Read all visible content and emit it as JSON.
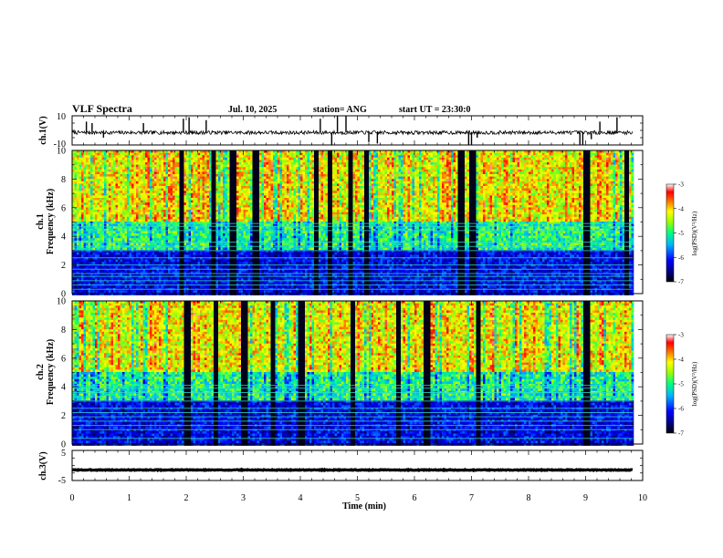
{
  "header": {
    "title": "VLF Spectra",
    "date": "Jul. 10, 2025",
    "station": "station= ANG",
    "start": "start UT = 23:30:0"
  },
  "x_axis": {
    "label": "Time (min)",
    "ticks": [
      "0",
      "1",
      "2",
      "3",
      "4",
      "5",
      "6",
      "7",
      "8",
      "9",
      "10"
    ]
  },
  "chart_data": [
    {
      "type": "line",
      "name": "ch1-waveform",
      "ylabel": "ch.1(V)",
      "y_ticks": [
        "10",
        "-10"
      ],
      "xlim": [
        0,
        10
      ],
      "ylim": [
        -10,
        10
      ],
      "x_data_max": 9.83,
      "baseline": -1.5,
      "noise_amplitude": 2.5,
      "spikes": [
        {
          "x": 0.25,
          "y": 6
        },
        {
          "x": 0.35,
          "y": 5
        },
        {
          "x": 0.55,
          "y": -5
        },
        {
          "x": 1.25,
          "y": 5
        },
        {
          "x": 1.95,
          "y": 8
        },
        {
          "x": 2.05,
          "y": 9
        },
        {
          "x": 2.35,
          "y": 7
        },
        {
          "x": 4.35,
          "y": 8
        },
        {
          "x": 4.55,
          "y": -10
        },
        {
          "x": 4.65,
          "y": 10
        },
        {
          "x": 4.8,
          "y": 10
        },
        {
          "x": 5.2,
          "y": -8
        },
        {
          "x": 5.35,
          "y": -9
        },
        {
          "x": 6.95,
          "y": -10
        },
        {
          "x": 7.0,
          "y": -10
        },
        {
          "x": 7.1,
          "y": -5
        },
        {
          "x": 8.9,
          "y": -10
        },
        {
          "x": 8.95,
          "y": -10
        },
        {
          "x": 9.1,
          "y": -6
        },
        {
          "x": 9.25,
          "y": 6
        },
        {
          "x": 9.55,
          "y": 9
        }
      ]
    },
    {
      "type": "heatmap",
      "name": "ch1-spectrogram",
      "ylabel": "ch.1",
      "ylabel2": "Frequency (kHz)",
      "y_ticks": [
        "0",
        "2",
        "4",
        "6",
        "8",
        "10"
      ],
      "xlim": [
        0,
        10
      ],
      "ylim": [
        0,
        10
      ],
      "x_data_max": 9.83,
      "colorbar": {
        "label": "log(PSD)(V²/Hz)",
        "ticks": [
          "-3",
          "-4",
          "-5",
          "-6",
          "-7"
        ],
        "range": [
          -7,
          -3
        ]
      },
      "bands": [
        0.3,
        0.6,
        0.9,
        1.2,
        1.4,
        1.7,
        2.0,
        2.5,
        3.0,
        3.3,
        3.6,
        4.4,
        4.7,
        4.9
      ],
      "bursts": [
        1.9,
        2.45,
        2.8,
        3.2,
        4.25,
        4.5,
        4.85,
        5.15,
        6.8,
        7.0,
        9.0,
        9.7
      ],
      "seed": 11
    },
    {
      "type": "heatmap",
      "name": "ch2-spectrogram",
      "ylabel": "ch.2",
      "ylabel2": "Frequency (kHz)",
      "y_ticks": [
        "0",
        "2",
        "4",
        "6",
        "8",
        "10"
      ],
      "xlim": [
        0,
        10
      ],
      "ylim": [
        0,
        10
      ],
      "x_data_max": 9.83,
      "colorbar": {
        "label": "log(PSD)(V²/Hz)",
        "ticks": [
          "-3",
          "-4",
          "-5",
          "-6",
          "-7"
        ],
        "range": [
          -7,
          -3
        ]
      },
      "bands": [
        0.4,
        1.0,
        1.3,
        1.6,
        1.9,
        2.2,
        2.5,
        3.0,
        3.3,
        3.6,
        3.9,
        4.1
      ],
      "bursts": [
        2.0,
        2.5,
        3.0,
        3.5,
        4.0,
        4.9,
        5.7,
        6.2,
        7.1,
        9.0
      ],
      "seed": 23
    },
    {
      "type": "line",
      "name": "ch3-waveform",
      "ylabel": "ch.3(V)",
      "y_ticks": [
        "5",
        "-5"
      ],
      "xlim": [
        0,
        10
      ],
      "ylim": [
        -5,
        5
      ],
      "x_data_max": 9.83,
      "baseline": -1.5,
      "noise_amplitude": 0.25,
      "spikes": []
    }
  ]
}
